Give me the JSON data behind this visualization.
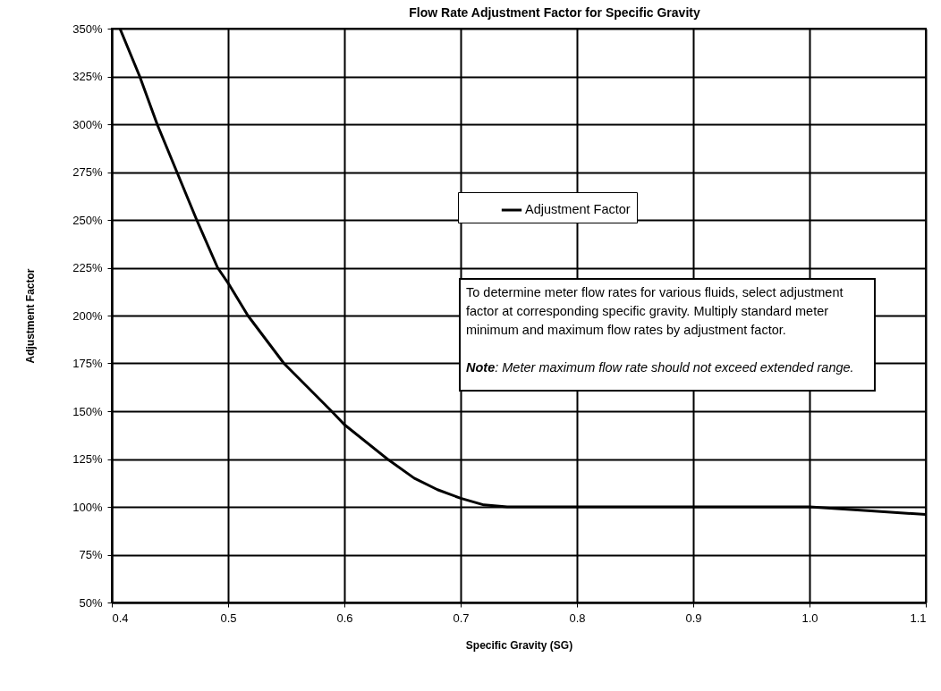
{
  "chart_data": {
    "type": "line",
    "title": "Flow Rate Adjustment Factor for Specific Gravity",
    "xlabel": "Specific Gravity (SG)",
    "ylabel": "Adjustment Factor",
    "x": [
      0.407,
      0.424,
      0.439,
      0.456,
      0.473,
      0.491,
      0.5,
      0.517,
      0.548,
      0.589,
      0.6,
      0.637,
      0.66,
      0.68,
      0.7,
      0.72,
      0.74,
      0.8,
      0.9,
      1.0,
      1.05,
      1.1
    ],
    "series": [
      {
        "name": "Adjustment Factor",
        "color": "#000000",
        "values": [
          350,
          325,
          300,
          275,
          250,
          225,
          217,
          200,
          175,
          150,
          143,
          125,
          115,
          109,
          104.5,
          101,
          100,
          100,
          100,
          100,
          98,
          96
        ]
      }
    ],
    "xlim": [
      0.4,
      1.1
    ],
    "xticks": [
      0.4,
      0.5,
      0.6,
      0.7,
      0.8,
      0.9,
      {
        "value": 1,
        "label": "1.0"
      },
      1.1
    ],
    "ylim": [
      50,
      350
    ],
    "yticks": [
      {
        "value": 50,
        "label": "50%"
      },
      {
        "value": 75,
        "label": "75%"
      },
      {
        "value": 100,
        "label": "100%"
      },
      {
        "value": 125,
        "label": "125%"
      },
      {
        "value": 150,
        "label": "150%"
      },
      {
        "value": 175,
        "label": "175%"
      },
      {
        "value": 200,
        "label": "200%"
      },
      {
        "value": 225,
        "label": "225%"
      },
      {
        "value": 250,
        "label": "250%"
      },
      {
        "value": 275,
        "label": "275%"
      },
      {
        "value": 300,
        "label": "300%"
      },
      {
        "value": 325,
        "label": "325%"
      },
      {
        "value": 350,
        "label": "350%"
      }
    ],
    "grid": true,
    "legend": "top",
    "marker": "none",
    "line_style": "solid",
    "annotations": [
      "To determine meter flow rates for various fluids, select adjustment factor at corresponding specific gravity. Multiply standard meter minimum and maximum flow rates by adjustment factor.",
      "Note:  Meter maximum flow rate should not exceed extended range."
    ]
  }
}
